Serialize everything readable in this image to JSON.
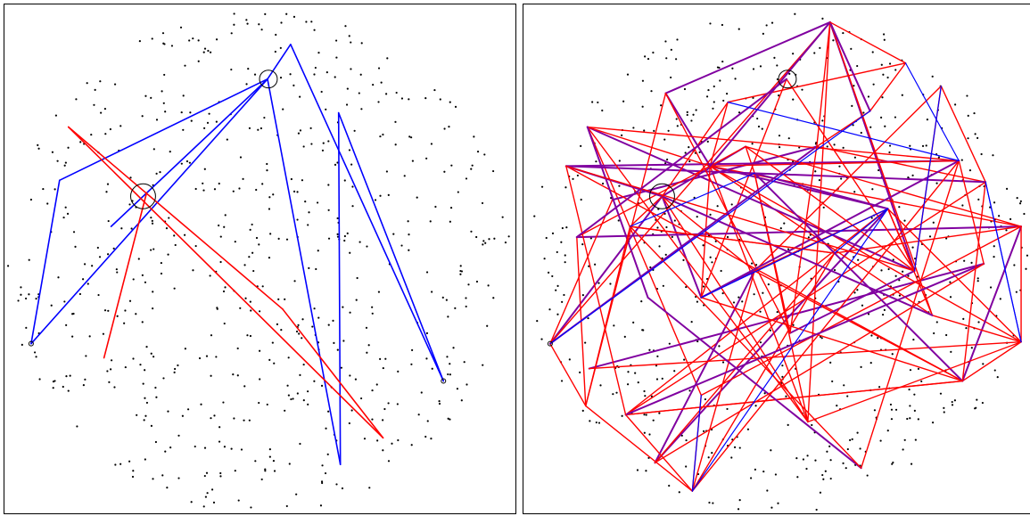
{
  "colors": {
    "background": "#ffffff",
    "border": "#000000",
    "points": "#000000",
    "path_blue": "#0000ff",
    "path_red": "#ff0000",
    "path_purple": "#8000a0",
    "highlight_circle": "#000000"
  },
  "panels": [
    {
      "id": "left",
      "description_label": "",
      "point_count": 600,
      "blue_path_segments": 9,
      "red_path_segments": 5,
      "highlight_circles": 2
    },
    {
      "id": "right",
      "description_label": "",
      "point_count": 600,
      "red_path_segments": 110,
      "blue_path_segments": 12,
      "highlight_circles": 2
    }
  ]
}
